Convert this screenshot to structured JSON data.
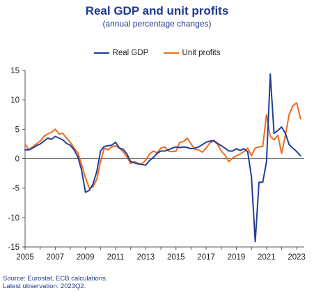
{
  "chart_data": {
    "type": "line",
    "title": "Real GDP and unit profits",
    "subtitle": "(annual percentage changes)",
    "xlabel": "",
    "ylabel": "",
    "ylim": [
      -15,
      15
    ],
    "yticks": [
      15,
      10,
      5,
      0,
      -5,
      -10,
      -15
    ],
    "xlim": [
      2005,
      2023.5
    ],
    "xticks": [
      "2005",
      "2007",
      "2009",
      "2011",
      "2013",
      "2015",
      "2017",
      "2019",
      "2021",
      "2023"
    ],
    "legend_position": "top",
    "grid": false,
    "series": [
      {
        "name": "Real GDP",
        "color": "#1f3e9a",
        "x": [
          2005.0,
          2005.25,
          2005.5,
          2005.75,
          2006.0,
          2006.25,
          2006.5,
          2006.75,
          2007.0,
          2007.25,
          2007.5,
          2007.75,
          2008.0,
          2008.25,
          2008.5,
          2008.75,
          2009.0,
          2009.25,
          2009.5,
          2009.75,
          2010.0,
          2010.25,
          2010.5,
          2010.75,
          2011.0,
          2011.25,
          2011.5,
          2011.75,
          2012.0,
          2012.25,
          2012.5,
          2012.75,
          2013.0,
          2013.25,
          2013.5,
          2013.75,
          2014.0,
          2014.25,
          2014.5,
          2014.75,
          2015.0,
          2015.25,
          2015.5,
          2015.75,
          2016.0,
          2016.25,
          2016.5,
          2016.75,
          2017.0,
          2017.25,
          2017.5,
          2017.75,
          2018.0,
          2018.25,
          2018.5,
          2018.75,
          2019.0,
          2019.25,
          2019.5,
          2019.75,
          2020.0,
          2020.25,
          2020.5,
          2020.75,
          2021.0,
          2021.25,
          2021.5,
          2021.75,
          2022.0,
          2022.25,
          2022.5,
          2022.75,
          2023.0,
          2023.25
        ],
        "values": [
          1.5,
          1.5,
          1.8,
          2.2,
          2.5,
          3.0,
          3.5,
          3.3,
          3.8,
          3.5,
          3.2,
          2.6,
          2.3,
          1.5,
          0.3,
          -2.0,
          -5.7,
          -5.4,
          -4.3,
          -2.2,
          1.3,
          2.1,
          2.2,
          2.3,
          2.8,
          1.8,
          1.6,
          0.8,
          -0.5,
          -0.7,
          -0.9,
          -1.0,
          -1.1,
          -0.3,
          0.2,
          0.9,
          1.3,
          1.3,
          1.5,
          1.8,
          2.0,
          1.9,
          2.0,
          1.9,
          1.7,
          1.8,
          2.0,
          2.4,
          2.8,
          3.0,
          3.1,
          2.6,
          2.2,
          1.8,
          1.3,
          1.3,
          1.7,
          1.4,
          1.7,
          1.2,
          -3.0,
          -14.1,
          -4.0,
          -4.0,
          -0.5,
          14.4,
          4.3,
          4.8,
          5.4,
          4.3,
          2.4,
          1.8,
          1.2,
          0.5
        ]
      },
      {
        "name": "Unit profits",
        "color": "#f26a1b",
        "x": [
          2005.0,
          2005.25,
          2005.5,
          2005.75,
          2006.0,
          2006.25,
          2006.5,
          2006.75,
          2007.0,
          2007.25,
          2007.5,
          2007.75,
          2008.0,
          2008.25,
          2008.5,
          2008.75,
          2009.0,
          2009.25,
          2009.5,
          2009.75,
          2010.0,
          2010.25,
          2010.5,
          2010.75,
          2011.0,
          2011.25,
          2011.5,
          2011.75,
          2012.0,
          2012.25,
          2012.5,
          2012.75,
          2013.0,
          2013.25,
          2013.5,
          2013.75,
          2014.0,
          2014.25,
          2014.5,
          2014.75,
          2015.0,
          2015.25,
          2015.5,
          2015.75,
          2016.0,
          2016.25,
          2016.5,
          2016.75,
          2017.0,
          2017.25,
          2017.5,
          2017.75,
          2018.0,
          2018.25,
          2018.5,
          2018.75,
          2019.0,
          2019.25,
          2019.5,
          2019.75,
          2020.0,
          2020.25,
          2020.5,
          2020.75,
          2021.0,
          2021.25,
          2021.5,
          2021.75,
          2022.0,
          2022.25,
          2022.5,
          2022.75,
          2023.0,
          2023.25
        ],
        "values": [
          2.5,
          1.5,
          2.0,
          2.5,
          3.0,
          3.8,
          4.2,
          4.5,
          5.0,
          4.2,
          4.3,
          3.5,
          2.8,
          1.8,
          1.0,
          -1.0,
          -3.2,
          -5.0,
          -4.8,
          -3.5,
          -0.5,
          1.8,
          1.5,
          2.0,
          2.2,
          1.8,
          1.2,
          0.3,
          -0.8,
          -0.5,
          -0.8,
          -0.9,
          -0.2,
          0.8,
          1.3,
          1.0,
          1.8,
          2.0,
          1.3,
          1.2,
          1.3,
          2.8,
          2.9,
          3.5,
          2.5,
          1.6,
          1.5,
          1.1,
          1.8,
          2.7,
          3.0,
          2.5,
          1.3,
          0.6,
          -0.5,
          0.1,
          0.5,
          0.8,
          1.2,
          1.8,
          0.5,
          1.8,
          2.0,
          2.1,
          7.5,
          3.8,
          3.2,
          4.0,
          0.9,
          4.0,
          7.5,
          9.0,
          9.5,
          6.8
        ]
      }
    ],
    "source": "Source: Eurostat, ECB calculations.",
    "note": "Latest observation: 2023Q2."
  }
}
